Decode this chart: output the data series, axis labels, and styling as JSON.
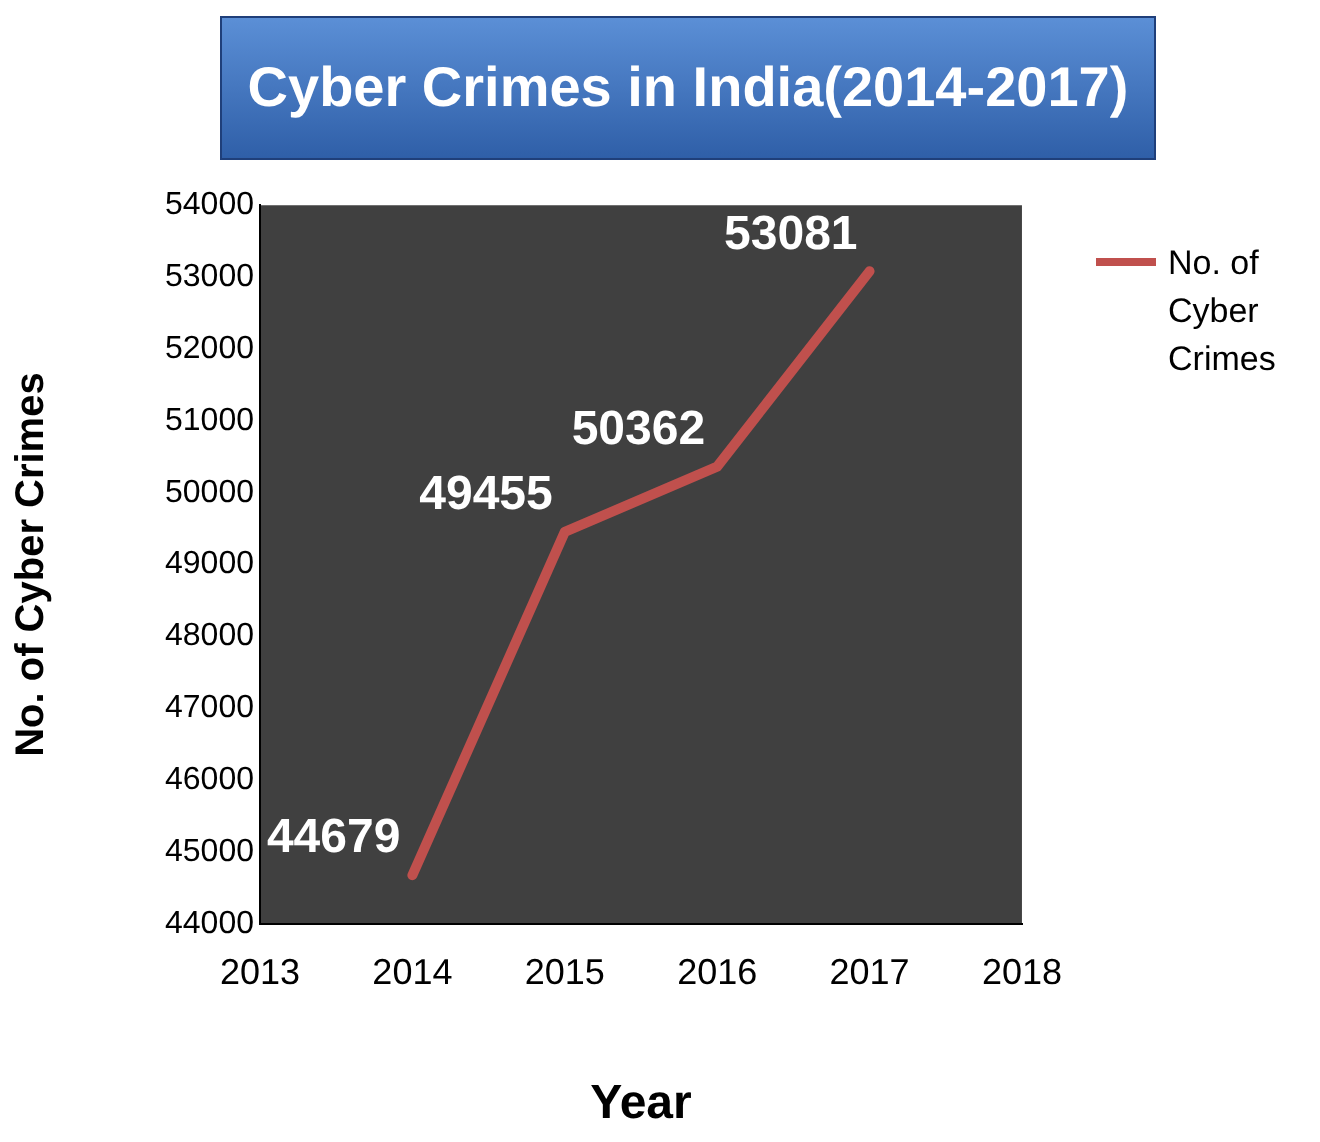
{
  "chart_data": {
    "type": "line",
    "title": "Cyber Crimes in India(2014-2017)",
    "xlabel": "Year",
    "ylabel": "No. of Cyber Crimes",
    "x": [
      2014,
      2015,
      2016,
      2017
    ],
    "series": [
      {
        "name": "No. of Cyber Crimes",
        "color": "#c0504d",
        "values": [
          44679,
          49455,
          50362,
          53081
        ]
      }
    ],
    "xlim": [
      2013,
      2018
    ],
    "xticks": [
      2013,
      2014,
      2015,
      2016,
      2017,
      2018
    ],
    "ylim": [
      44000,
      54000
    ],
    "yticks": [
      44000,
      45000,
      46000,
      47000,
      48000,
      49000,
      50000,
      51000,
      52000,
      53000,
      54000
    ],
    "grid": false,
    "legend": "right",
    "marker": "none",
    "line_style": "solid",
    "data_labels": true
  }
}
